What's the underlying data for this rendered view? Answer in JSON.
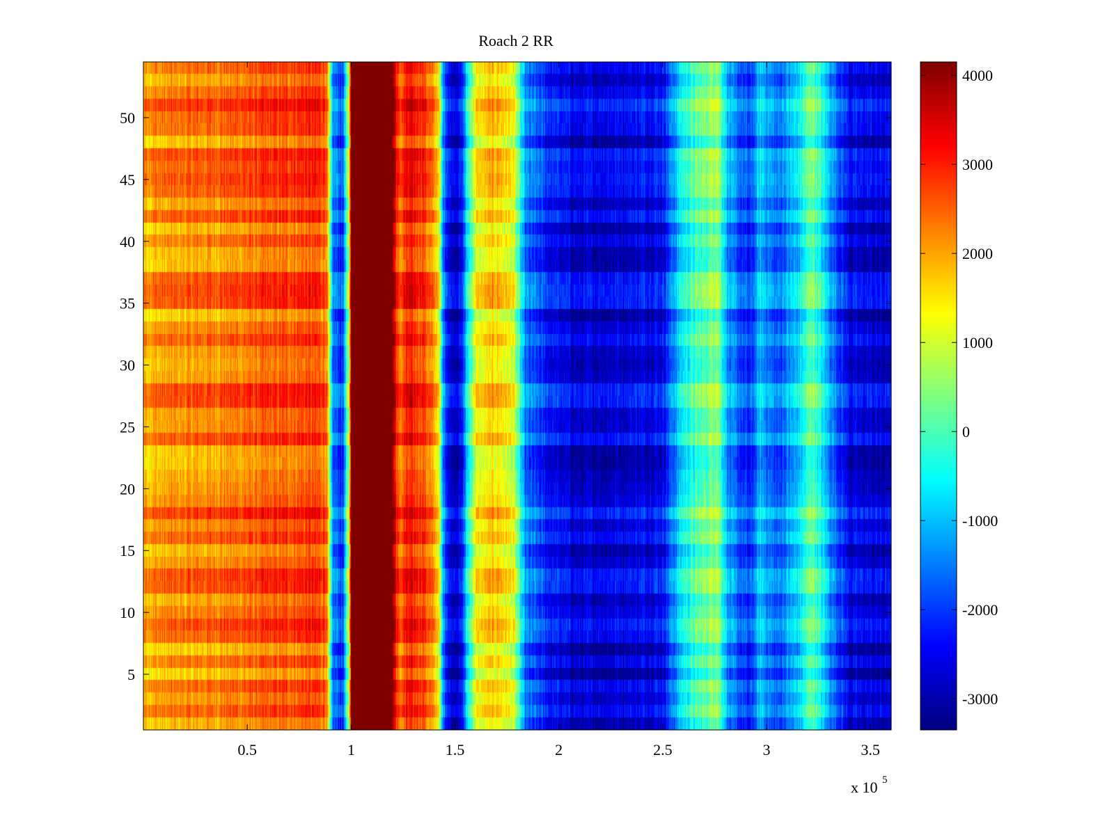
{
  "chart_data": {
    "type": "heatmap",
    "title": "Roach 2 RR",
    "xlabel": "",
    "ylabel": "",
    "x_multiplier_label": "x 10",
    "x_multiplier_exponent": "5",
    "xlim": [
      0,
      3.6
    ],
    "ylim": [
      0.5,
      54.5
    ],
    "x_ticks": [
      "0.5",
      "1",
      "1.5",
      "2",
      "2.5",
      "3",
      "3.5"
    ],
    "y_ticks": [
      "5",
      "10",
      "15",
      "20",
      "25",
      "30",
      "35",
      "40",
      "45",
      "50"
    ],
    "colormap": "jet",
    "color_range": [
      -3350,
      4150
    ],
    "colorbar_ticks": [
      "4000",
      "3000",
      "2000",
      "1000",
      "0",
      "-1000",
      "-2000",
      "-3000"
    ],
    "rows": 54,
    "profile": {
      "x": [
        0.0,
        0.5,
        0.8,
        0.88,
        0.91,
        0.96,
        0.99,
        1.0,
        1.2,
        1.23,
        1.27,
        1.35,
        1.42,
        1.44,
        1.48,
        1.53,
        1.56,
        1.6,
        1.7,
        1.78,
        1.84,
        1.95,
        2.1,
        2.2,
        2.35,
        2.5,
        2.6,
        2.72,
        2.76,
        2.82,
        2.92,
        2.97,
        3.05,
        3.15,
        3.22,
        3.3,
        3.4,
        3.6
      ],
      "value": [
        2000,
        2400,
        2700,
        2600,
        -1500,
        -2000,
        800,
        4150,
        4150,
        2300,
        3000,
        2800,
        1600,
        -1200,
        -2700,
        -2600,
        -600,
        1200,
        1700,
        1100,
        -1600,
        -2300,
        -2800,
        -2700,
        -2600,
        -2400,
        -500,
        300,
        700,
        -1400,
        -2200,
        -1000,
        -1800,
        -900,
        300,
        -1200,
        -2600,
        -2800
      ]
    }
  }
}
